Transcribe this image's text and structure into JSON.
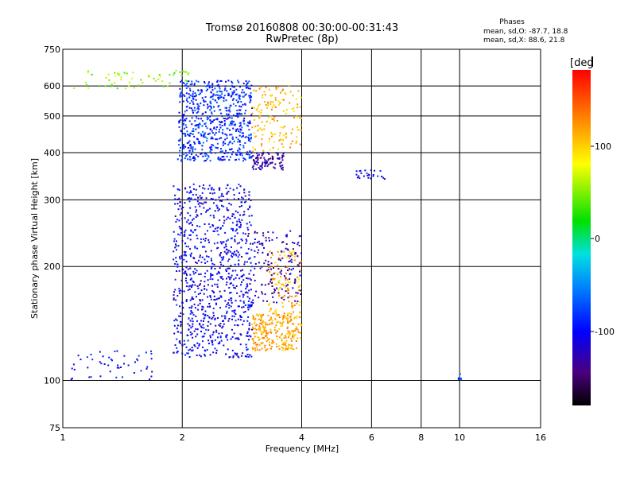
{
  "title_line1": "Tromsø 20160808 00:30:00-00:31:43",
  "title_line2": "RwPretec (8p)",
  "phase_box": {
    "heading": "Phases",
    "line_o": "mean, sd,O: -87.7, 18.8",
    "line_x": "mean, sd,X: 88.6, 21.8"
  },
  "colorbar": {
    "unit_label": "[deg",
    "tick_labels": [
      "100",
      "0",
      "-100"
    ],
    "range": [
      -180,
      180
    ]
  },
  "chart_data": {
    "type": "scatter",
    "xlabel": "Frequency [MHz]",
    "ylabel": "Stationary phase Virtual Height [km]",
    "x_scale": "log",
    "y_scale": "log",
    "xlim": [
      1,
      16
    ],
    "ylim": [
      75,
      750
    ],
    "x_ticks": [
      1,
      2,
      4,
      6,
      8,
      10,
      16
    ],
    "x_tick_labels": [
      "1",
      "2",
      "4",
      "6",
      "8",
      "10",
      "16"
    ],
    "y_ticks": [
      75,
      100,
      200,
      300,
      400,
      500,
      600,
      750
    ],
    "y_tick_labels": [
      "75",
      "100",
      "200",
      "300",
      "400",
      "500",
      "600",
      "750"
    ],
    "grid": true,
    "clusters": [
      {
        "fmin": 1.05,
        "fmax": 1.7,
        "hmin": 100,
        "hmax": 120,
        "phase": -100,
        "count": 50
      },
      {
        "fmin": 1.9,
        "fmax": 3.0,
        "hmin": 115,
        "hmax": 330,
        "phase": -105,
        "count": 900
      },
      {
        "fmin": 3.0,
        "fmax": 4.0,
        "hmin": 120,
        "hmax": 150,
        "phase": 115,
        "count": 260
      },
      {
        "fmin": 3.3,
        "fmax": 4.0,
        "hmin": 150,
        "hmax": 220,
        "phase": 110,
        "count": 120
      },
      {
        "fmin": 3.0,
        "fmax": 4.0,
        "hmin": 160,
        "hmax": 250,
        "phase": -125,
        "count": 150
      },
      {
        "fmin": 1.95,
        "fmax": 3.0,
        "hmin": 380,
        "hmax": 620,
        "phase": -85,
        "count": 650
      },
      {
        "fmin": 3.0,
        "fmax": 3.6,
        "hmin": 360,
        "hmax": 400,
        "phase": -135,
        "count": 90
      },
      {
        "fmin": 3.0,
        "fmax": 4.0,
        "hmin": 400,
        "hmax": 600,
        "phase": 110,
        "count": 150
      },
      {
        "fmin": 1.05,
        "fmax": 2.1,
        "hmin": 590,
        "hmax": 660,
        "phase": 50,
        "count": 60
      },
      {
        "fmin": 5.5,
        "fmax": 6.6,
        "hmin": 340,
        "hmax": 360,
        "phase": -100,
        "count": 25
      },
      {
        "fmin": 9.9,
        "fmax": 10.1,
        "hmin": 100,
        "hmax": 104,
        "phase": -80,
        "count": 6
      }
    ]
  }
}
